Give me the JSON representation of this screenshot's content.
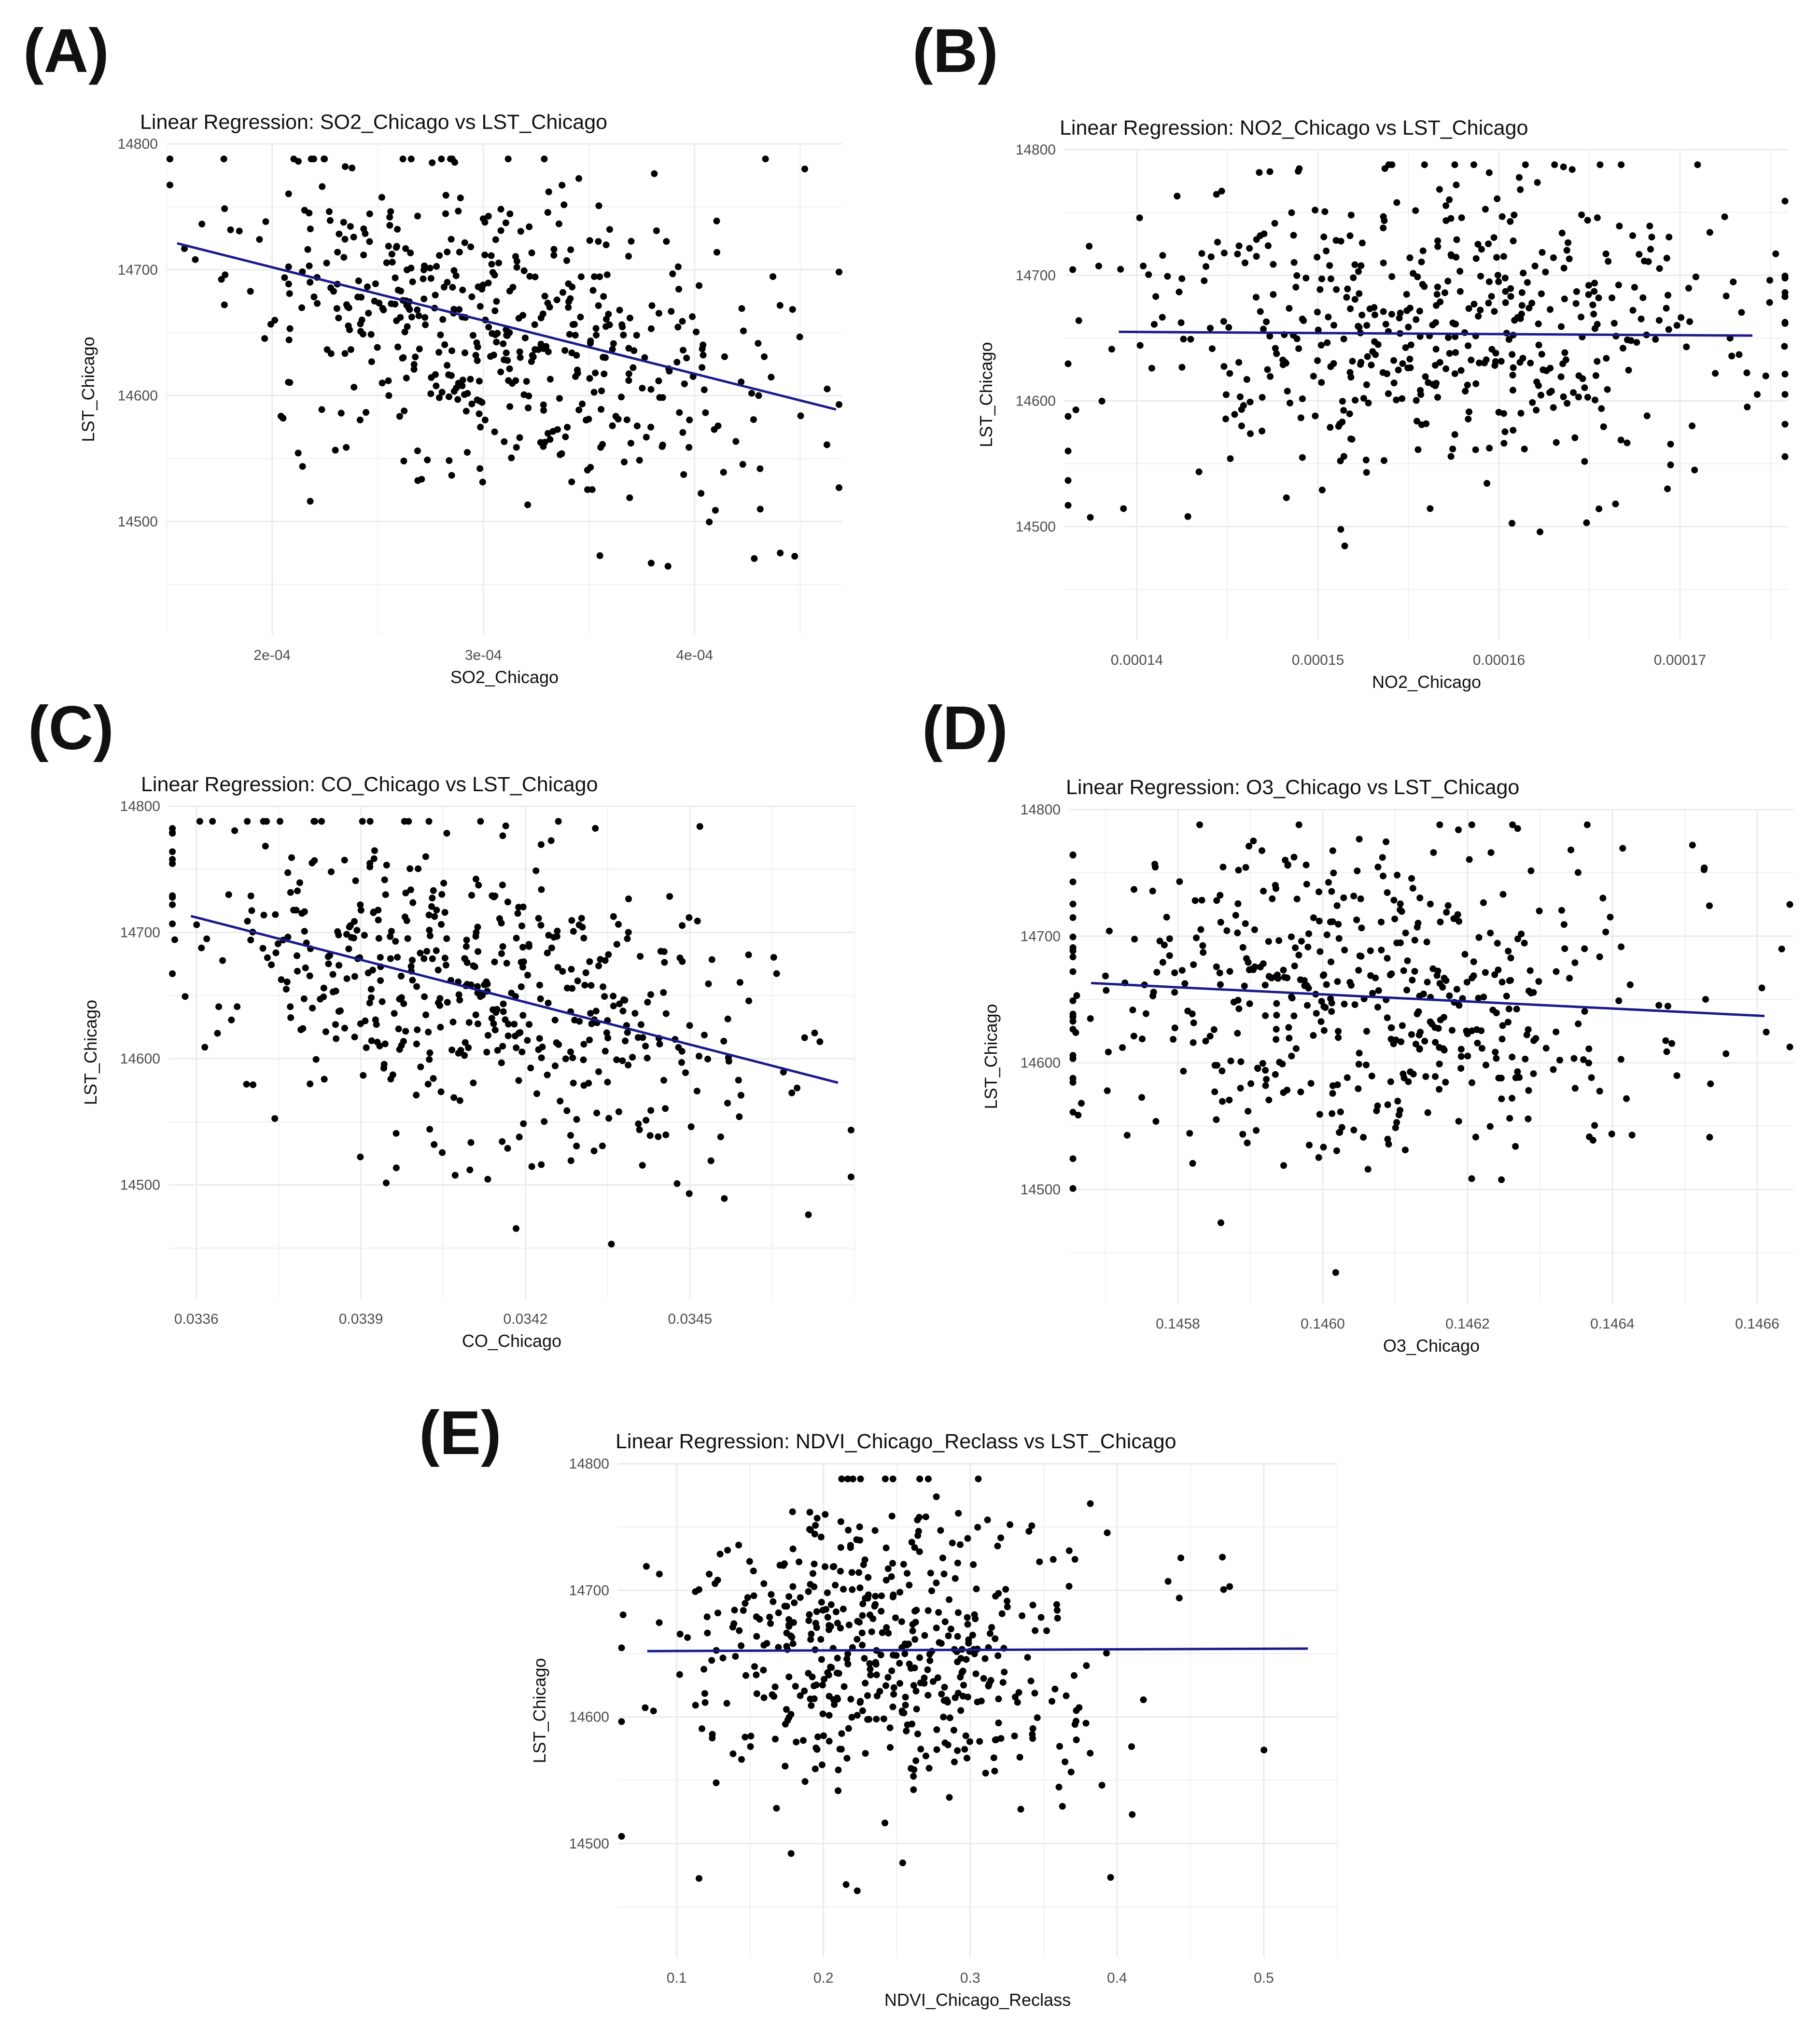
{
  "figure": {
    "panels": [
      "(A)",
      "(B)",
      "(C)",
      "(D)",
      "(E)"
    ]
  },
  "colors": {
    "points": "#000000",
    "regression_line": "#1a1a8c",
    "grid": "#ebebeb",
    "axis_text": "#4d4d4d"
  },
  "chart_data": [
    {
      "type": "scatter",
      "panel": "(A)",
      "title": "Linear Regression: SO2_Chicago vs LST_Chicago",
      "xlabel": "SO2_Chicago",
      "ylabel": "LST_Chicago",
      "xlim": [
        0.00015,
        0.00047
      ],
      "ylim": [
        14410,
        14800
      ],
      "xticks": [
        0.0002,
        0.0003,
        0.0004
      ],
      "xtick_labels": [
        "2e-04",
        "3e-04",
        "4e-04"
      ],
      "yticks": [
        14500,
        14600,
        14700,
        14800
      ],
      "ytick_labels": [
        "14500",
        "14600",
        "14700",
        "14800"
      ],
      "regression": {
        "x": [
          0.000155,
          0.000467
        ],
        "y": [
          14721,
          14589
        ]
      },
      "cloud": {
        "n": 520,
        "x_center": 0.000305,
        "x_spread": 6.2e-05,
        "y_center": 14656,
        "y_spread": 62,
        "slope": -420000,
        "seed": 11
      }
    },
    {
      "type": "scatter",
      "panel": "(B)",
      "title": "Linear Regression: NO2_Chicago vs LST_Chicago",
      "xlabel": "NO2_Chicago",
      "ylabel": "LST_Chicago",
      "xlim": [
        0.000136,
        0.000176
      ],
      "ylim": [
        14410,
        14800
      ],
      "xticks": [
        0.00014,
        0.00015,
        0.00016,
        0.00017
      ],
      "xtick_labels": [
        "0.00014",
        "0.00015",
        "0.00016",
        "0.00017"
      ],
      "yticks": [
        14500,
        14600,
        14700,
        14800
      ],
      "ytick_labels": [
        "14500",
        "14600",
        "14700",
        "14800"
      ],
      "regression": {
        "x": [
          0.000139,
          0.000174
        ],
        "y": [
          14655,
          14652
        ]
      },
      "cloud": {
        "n": 520,
        "x_center": 0.000156,
        "x_spread": 8.5e-06,
        "y_center": 14656,
        "y_spread": 62,
        "slope": 0,
        "seed": 23
      }
    },
    {
      "type": "scatter",
      "panel": "(C)",
      "title": "Linear Regression: CO_Chicago vs LST_Chicago",
      "xlabel": "CO_Chicago",
      "ylabel": "LST_Chicago",
      "xlim": [
        0.03355,
        0.0348
      ],
      "ylim": [
        14410,
        14800
      ],
      "xticks": [
        0.0336,
        0.0339,
        0.0342,
        0.0345
      ],
      "xtick_labels": [
        "0.0336",
        "0.0339",
        "0.0342",
        "0.0345"
      ],
      "yticks": [
        14500,
        14600,
        14700,
        14800
      ],
      "ytick_labels": [
        "14500",
        "14600",
        "14700",
        "14800"
      ],
      "regression": {
        "x": [
          0.03359,
          0.03477
        ],
        "y": [
          14713,
          14581
        ]
      },
      "cloud": {
        "n": 520,
        "x_center": 0.03412,
        "x_spread": 0.00026,
        "y_center": 14654,
        "y_spread": 62,
        "slope": -110000,
        "seed": 37
      }
    },
    {
      "type": "scatter",
      "panel": "(D)",
      "title": "Linear Regression: O3_Chicago vs LST_Chicago",
      "xlabel": "O3_Chicago",
      "ylabel": "LST_Chicago",
      "xlim": [
        0.14565,
        0.14665
      ],
      "ylim": [
        14410,
        14800
      ],
      "xticks": [
        0.1458,
        0.146,
        0.1462,
        0.1464,
        0.1466
      ],
      "xtick_labels": [
        "0.1458",
        "0.1460",
        "0.1462",
        "0.1464",
        "0.1466"
      ],
      "yticks": [
        14500,
        14600,
        14700,
        14800
      ],
      "ytick_labels": [
        "14500",
        "14600",
        "14700",
        "14800"
      ],
      "regression": {
        "x": [
          0.14568,
          0.14661
        ],
        "y": [
          14663,
          14637
        ]
      },
      "cloud": {
        "n": 520,
        "x_center": 0.14605,
        "x_spread": 0.00021,
        "y_center": 14652,
        "y_spread": 64,
        "slope": -28000,
        "seed": 53
      }
    },
    {
      "type": "scatter",
      "panel": "(E)",
      "title": "Linear Regression: NDVI_Chicago_Reclass vs LST_Chicago",
      "xlabel": "NDVI_Chicago_Reclass",
      "ylabel": "LST_Chicago",
      "xlim": [
        0.06,
        0.55
      ],
      "ylim": [
        14410,
        14800
      ],
      "xticks": [
        0.1,
        0.2,
        0.3,
        0.4,
        0.5
      ],
      "xtick_labels": [
        "0.1",
        "0.2",
        "0.3",
        "0.4",
        "0.5"
      ],
      "yticks": [
        14500,
        14600,
        14700,
        14800
      ],
      "ytick_labels": [
        "14500",
        "14600",
        "14700",
        "14800"
      ],
      "regression": {
        "x": [
          0.08,
          0.53
        ],
        "y": [
          14652,
          14654
        ]
      },
      "cloud": {
        "n": 520,
        "x_center": 0.245,
        "x_spread": 0.075,
        "y_center": 14655,
        "y_spread": 62,
        "slope": 0,
        "seed": 71
      }
    }
  ]
}
